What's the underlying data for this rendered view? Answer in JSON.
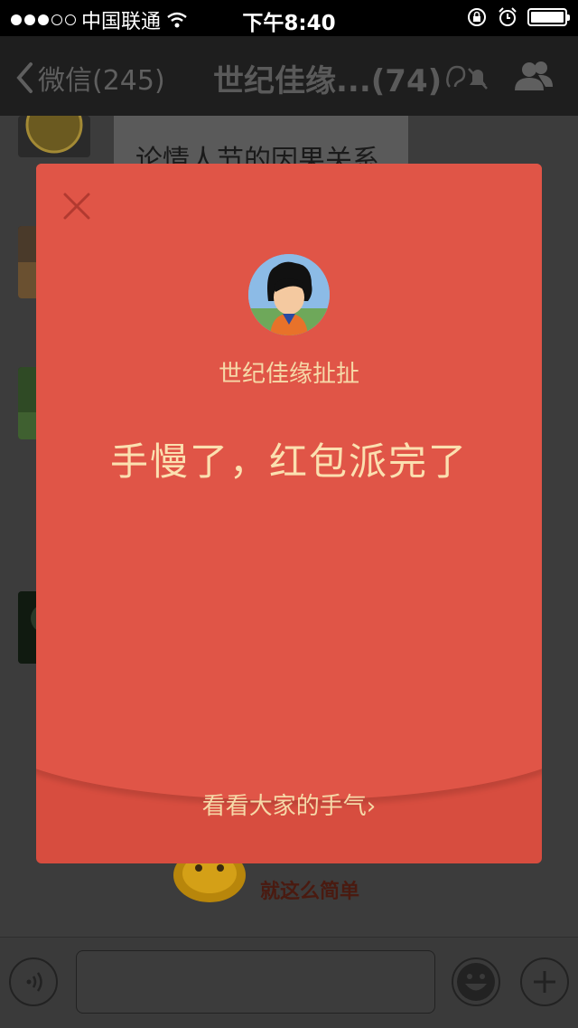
{
  "status_bar": {
    "carrier": "中国联通",
    "time": "下午8:40",
    "battery_level": 1.0
  },
  "nav": {
    "back_label": "微信(245)",
    "title": "世纪佳缘...(74)"
  },
  "chat": {
    "partial_message": "论情人节的因果关系",
    "sticker_caption": "就这么简单"
  },
  "red_packet": {
    "sender_name": "世纪佳缘扯扯",
    "message": "手慢了，红包派完了",
    "see_luck_link": "看看大家的手气",
    "colors": {
      "top": "#e05547",
      "bottom": "#d74d3f",
      "text": "#f6d9a8"
    }
  },
  "icons": [
    "wifi-icon",
    "lock-rotation-icon",
    "alarm-icon",
    "battery-icon",
    "back-chevron-icon",
    "mute-icon",
    "group-members-icon",
    "close-icon",
    "voice-icon",
    "emoji-icon",
    "plus-icon"
  ]
}
